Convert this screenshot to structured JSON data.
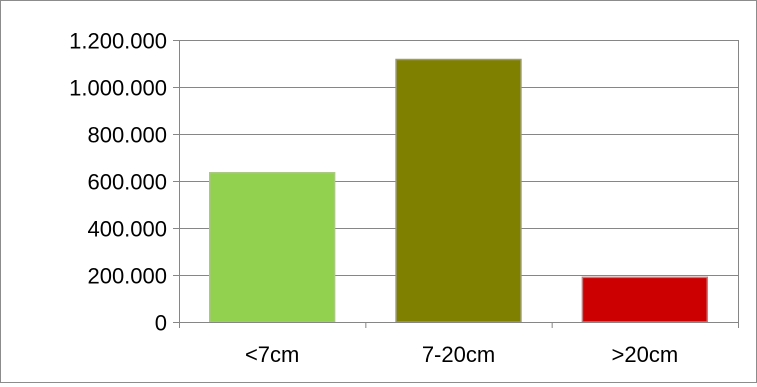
{
  "chart_data": {
    "type": "bar",
    "title": "",
    "xlabel": "",
    "ylabel": "",
    "categories": [
      "<7cm",
      "7-20cm",
      ">20cm"
    ],
    "values": [
      635000,
      1117000,
      190000
    ],
    "ylim": [
      0,
      1200000
    ],
    "yticks": [
      0,
      200000,
      400000,
      600000,
      800000,
      1000000,
      1200000
    ],
    "ytick_labels": [
      "0",
      "200.000",
      "400.000",
      "600.000",
      "800.000",
      "1.000.000",
      "1.200.000"
    ],
    "bar_colors": [
      "#92d050",
      "#808000",
      "#cc0000"
    ],
    "bar_edge_colors": [
      "#a9c97f",
      "#9c9c6a",
      "#c97a7a"
    ],
    "grid": true,
    "grid_color": "#868686",
    "legend": "none"
  }
}
